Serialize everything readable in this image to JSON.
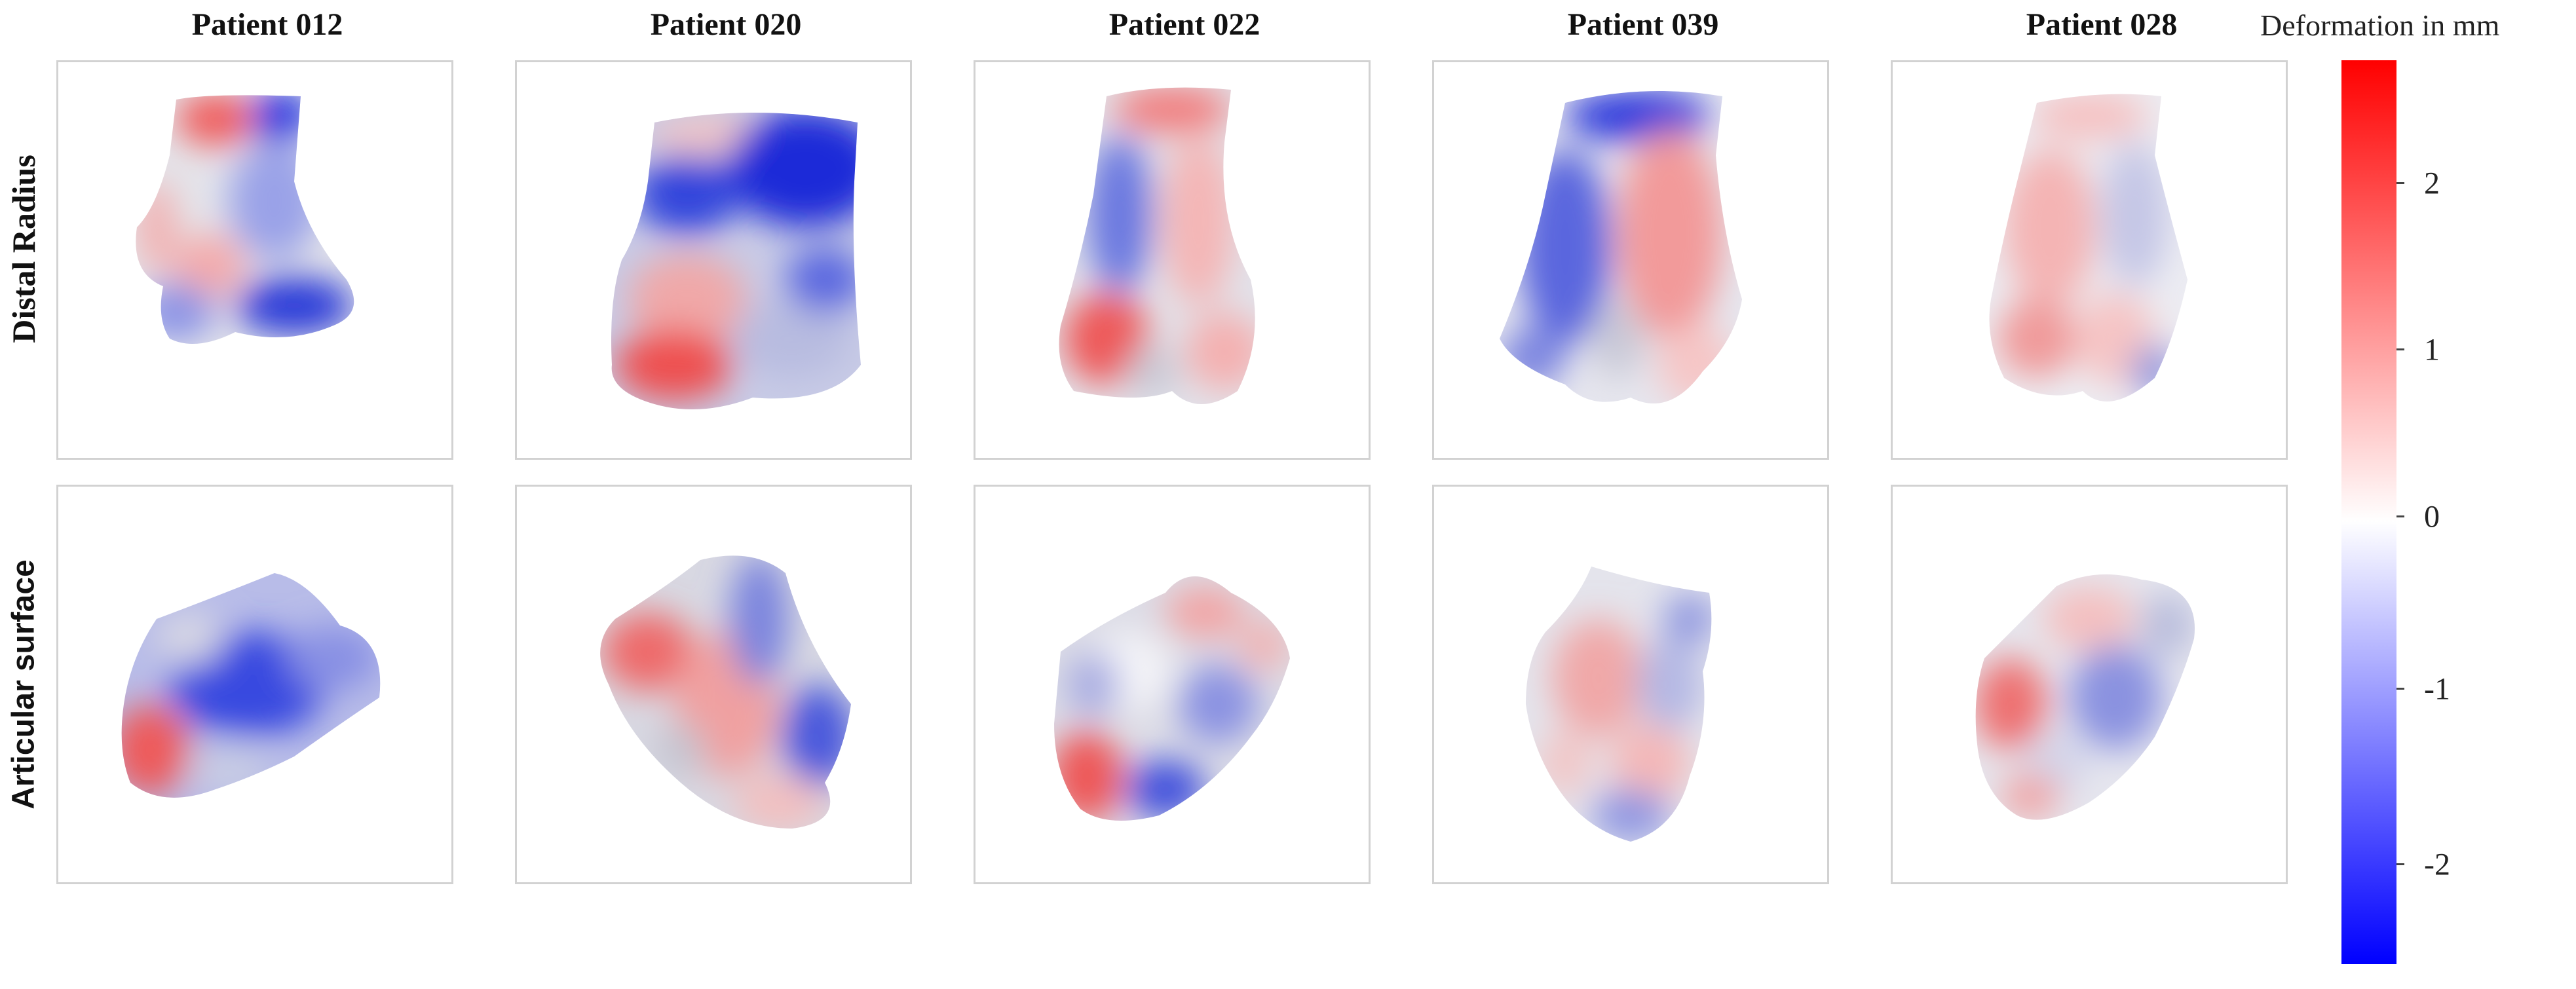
{
  "columns": [
    {
      "title": "Patient 012"
    },
    {
      "title": "Patient 020"
    },
    {
      "title": "Patient 022"
    },
    {
      "title": "Patient 039"
    },
    {
      "title": "Patient 028"
    }
  ],
  "rows": [
    {
      "label": "Distal Radius"
    },
    {
      "label": "Articular surface"
    }
  ],
  "colorbar": {
    "title": "Deformation in mm",
    "ticks": [
      "2",
      "1",
      "0",
      "-1",
      "-2"
    ],
    "colors": {
      "max": "#ff0000",
      "mid": "#ffffff",
      "min": "#0000ff"
    }
  }
}
